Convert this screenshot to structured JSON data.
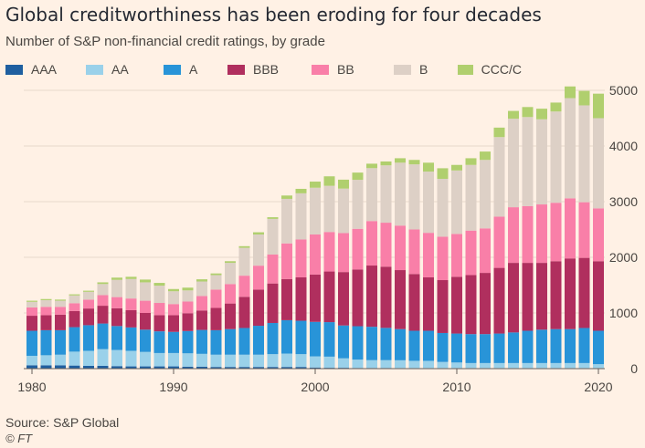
{
  "header": {
    "title": "Global creditworthiness has been eroding for four decades",
    "subtitle": "Number of S&P non-financial credit ratings, by grade"
  },
  "footer": {
    "source": "Source: S&P Global",
    "credit": "© FT"
  },
  "chart_data": {
    "type": "bar",
    "stacked": true,
    "title": "Global creditworthiness has been eroding for four decades",
    "subtitle": "Number of S&P non-financial credit ratings, by grade",
    "xlabel": "",
    "ylabel": "",
    "ylim": [
      0,
      5000
    ],
    "yticks": [
      0,
      1000,
      2000,
      3000,
      4000,
      5000
    ],
    "xticks": [
      1980,
      1990,
      2000,
      2010,
      2020
    ],
    "y_axis_side": "right",
    "grid": true,
    "legend_position": "top-left",
    "categories": [
      1980,
      1981,
      1982,
      1983,
      1984,
      1985,
      1986,
      1987,
      1988,
      1989,
      1990,
      1991,
      1992,
      1993,
      1994,
      1995,
      1996,
      1997,
      1998,
      1999,
      2000,
      2001,
      2002,
      2003,
      2004,
      2005,
      2006,
      2007,
      2008,
      2009,
      2010,
      2011,
      2012,
      2013,
      2014,
      2015,
      2016,
      2017,
      2018,
      2019,
      2020
    ],
    "series": [
      {
        "name": "AAA",
        "color": "#1f5fa0",
        "values": [
          60,
          60,
          60,
          55,
          50,
          50,
          45,
          40,
          40,
          40,
          40,
          35,
          35,
          30,
          30,
          30,
          30,
          30,
          30,
          30,
          20,
          15,
          15,
          12,
          12,
          12,
          10,
          10,
          10,
          10,
          10,
          10,
          10,
          10,
          10,
          10,
          10,
          10,
          10,
          10,
          10
        ]
      },
      {
        "name": "AA",
        "color": "#9ad1ea",
        "values": [
          170,
          180,
          190,
          250,
          270,
          300,
          290,
          280,
          260,
          240,
          240,
          240,
          230,
          220,
          220,
          220,
          220,
          230,
          240,
          230,
          200,
          200,
          170,
          150,
          140,
          140,
          140,
          130,
          130,
          110,
          100,
          90,
          90,
          90,
          90,
          90,
          90,
          90,
          90,
          90,
          70
        ]
      },
      {
        "name": "A",
        "color": "#2894d8",
        "values": [
          450,
          450,
          440,
          440,
          460,
          460,
          430,
          420,
          400,
          390,
          380,
          400,
          430,
          440,
          460,
          480,
          520,
          560,
          600,
          600,
          620,
          620,
          590,
          600,
          600,
          580,
          560,
          540,
          540,
          520,
          520,
          520,
          520,
          530,
          550,
          580,
          600,
          610,
          610,
          630,
          600
        ]
      },
      {
        "name": "BBB",
        "color": "#b02f5e",
        "values": [
          270,
          270,
          280,
          290,
          300,
          320,
          320,
          310,
          300,
          290,
          300,
          320,
          350,
          400,
          460,
          560,
          650,
          710,
          740,
          780,
          850,
          910,
          960,
          1020,
          1100,
          1100,
          1060,
          1020,
          960,
          950,
          1020,
          1060,
          1100,
          1180,
          1250,
          1220,
          1200,
          1220,
          1270,
          1260,
          1250
        ]
      },
      {
        "name": "BB",
        "color": "#f97fa8",
        "values": [
          150,
          150,
          140,
          140,
          160,
          190,
          200,
          210,
          220,
          220,
          200,
          210,
          260,
          330,
          350,
          380,
          430,
          520,
          640,
          680,
          720,
          710,
          700,
          730,
          800,
          790,
          800,
          800,
          800,
          780,
          770,
          800,
          800,
          920,
          1000,
          1020,
          1050,
          1050,
          1080,
          1000,
          950
        ]
      },
      {
        "name": "B",
        "color": "#ddd0c6",
        "values": [
          100,
          120,
          110,
          140,
          140,
          200,
          310,
          350,
          330,
          310,
          230,
          200,
          260,
          260,
          380,
          500,
          560,
          640,
          800,
          830,
          840,
          830,
          800,
          880,
          950,
          1030,
          1130,
          1170,
          1100,
          1040,
          1140,
          1180,
          1230,
          1430,
          1590,
          1600,
          1530,
          1640,
          1800,
          1740,
          1620
        ]
      },
      {
        "name": "CCC/C",
        "color": "#b0cf6e",
        "values": [
          20,
          20,
          20,
          20,
          20,
          30,
          40,
          40,
          50,
          50,
          40,
          50,
          40,
          30,
          30,
          30,
          40,
          30,
          60,
          80,
          110,
          170,
          160,
          130,
          80,
          70,
          80,
          80,
          160,
          190,
          100,
          120,
          150,
          170,
          140,
          180,
          190,
          160,
          210,
          260,
          440
        ]
      }
    ]
  }
}
